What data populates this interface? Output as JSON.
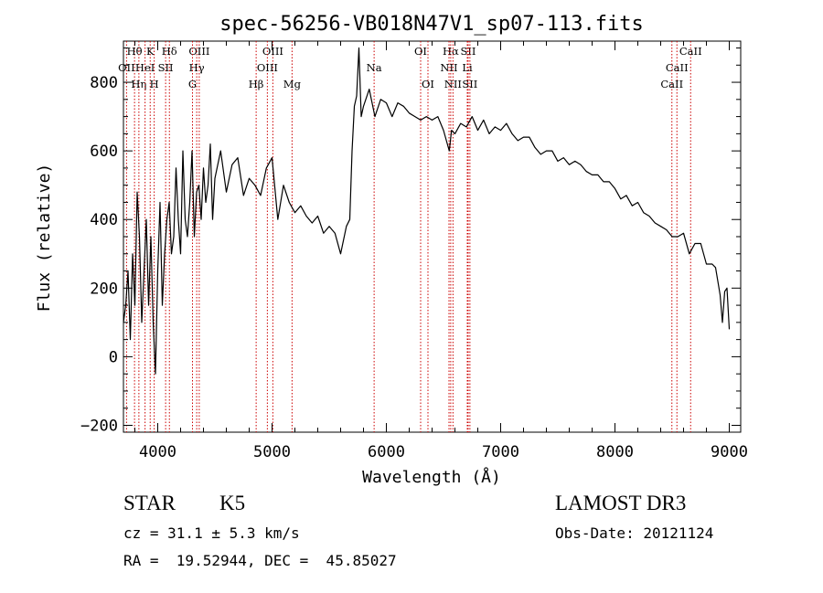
{
  "chart_data": {
    "type": "line",
    "title": "spec-56256-VB018N47V1_sp07-113.fits",
    "xlabel": "Wavelength (Å)",
    "ylabel": "Flux (relative)",
    "xlim": [
      3700,
      9100
    ],
    "ylim": [
      -220,
      920
    ],
    "x_ticks": [
      4000,
      5000,
      6000,
      7000,
      8000,
      9000
    ],
    "y_ticks": [
      -200,
      0,
      200,
      400,
      600,
      800
    ],
    "y_ticks_labels": [
      "−200",
      "0",
      "200",
      "400",
      "600",
      "800"
    ],
    "grid": false,
    "series_color": "#000000",
    "line_color": "#cc0000",
    "spectrum": {
      "x": [
        3700,
        3720,
        3740,
        3760,
        3780,
        3800,
        3820,
        3840,
        3860,
        3880,
        3900,
        3920,
        3940,
        3960,
        3980,
        4000,
        4020,
        4040,
        4060,
        4080,
        4100,
        4120,
        4140,
        4160,
        4180,
        4200,
        4220,
        4240,
        4260,
        4280,
        4300,
        4320,
        4340,
        4360,
        4380,
        4400,
        4420,
        4440,
        4460,
        4480,
        4500,
        4550,
        4600,
        4650,
        4700,
        4750,
        4800,
        4850,
        4900,
        4950,
        5000,
        5050,
        5100,
        5150,
        5200,
        5250,
        5300,
        5350,
        5400,
        5450,
        5500,
        5550,
        5600,
        5650,
        5680,
        5700,
        5720,
        5740,
        5760,
        5780,
        5800,
        5850,
        5900,
        5950,
        6000,
        6050,
        6100,
        6150,
        6200,
        6250,
        6300,
        6350,
        6400,
        6450,
        6500,
        6550,
        6570,
        6600,
        6650,
        6700,
        6750,
        6800,
        6850,
        6900,
        6950,
        7000,
        7050,
        7100,
        7150,
        7200,
        7250,
        7300,
        7350,
        7400,
        7450,
        7500,
        7550,
        7600,
        7650,
        7700,
        7750,
        7800,
        7850,
        7900,
        7950,
        8000,
        8050,
        8100,
        8150,
        8200,
        8250,
        8300,
        8350,
        8400,
        8450,
        8500,
        8550,
        8600,
        8650,
        8700,
        8750,
        8800,
        8850,
        8880,
        8900,
        8920,
        8940,
        8960,
        8980,
        9000
      ],
      "y": [
        100,
        150,
        250,
        50,
        300,
        150,
        480,
        350,
        100,
        250,
        400,
        150,
        350,
        100,
        -50,
        250,
        450,
        150,
        300,
        400,
        450,
        300,
        350,
        550,
        400,
        300,
        600,
        400,
        350,
        450,
        600,
        350,
        480,
        500,
        400,
        550,
        450,
        500,
        620,
        400,
        520,
        600,
        480,
        560,
        580,
        470,
        520,
        500,
        470,
        550,
        580,
        400,
        500,
        450,
        420,
        440,
        410,
        390,
        410,
        360,
        380,
        360,
        300,
        380,
        400,
        600,
        730,
        760,
        900,
        700,
        730,
        780,
        700,
        750,
        740,
        700,
        740,
        730,
        710,
        700,
        690,
        700,
        690,
        700,
        660,
        600,
        660,
        650,
        680,
        670,
        700,
        660,
        690,
        650,
        670,
        660,
        680,
        650,
        630,
        640,
        640,
        610,
        590,
        600,
        600,
        570,
        580,
        560,
        570,
        560,
        540,
        530,
        530,
        510,
        510,
        490,
        460,
        470,
        440,
        450,
        420,
        410,
        390,
        380,
        370,
        350,
        350,
        360,
        300,
        330,
        330,
        270,
        270,
        260,
        220,
        180,
        100,
        190,
        200,
        80
      ]
    },
    "lines": [
      {
        "label": "Hθ",
        "x": 3797,
        "row": 0
      },
      {
        "label": "OII",
        "x": 3727,
        "row": 1
      },
      {
        "label": "Hη",
        "x": 3835,
        "row": 2
      },
      {
        "label": "K",
        "x": 3934,
        "row": 0
      },
      {
        "label": "HeI",
        "x": 3889,
        "row": 1
      },
      {
        "label": "SII",
        "x": 4069,
        "row": 1
      },
      {
        "label": "H",
        "x": 3969,
        "row": 2
      },
      {
        "label": "Hδ",
        "x": 4102,
        "row": 0
      },
      {
        "label": "OIII",
        "x": 4363,
        "row": 0
      },
      {
        "label": "Hγ",
        "x": 4341,
        "row": 1
      },
      {
        "label": "G",
        "x": 4304,
        "row": 2
      },
      {
        "label": "Hβ",
        "x": 4861,
        "row": 2
      },
      {
        "label": "OIII",
        "x": 5007,
        "row": 0
      },
      {
        "label": "OIII",
        "x": 4959,
        "row": 1
      },
      {
        "label": "Mg",
        "x": 5175,
        "row": 2
      },
      {
        "label": "Na",
        "x": 5893,
        "row": 1
      },
      {
        "label": "OI",
        "x": 6300,
        "row": 0
      },
      {
        "label": "OI",
        "x": 6364,
        "row": 2
      },
      {
        "label": "Hα",
        "x": 6563,
        "row": 0
      },
      {
        "label": "SII",
        "x": 6716,
        "row": 0
      },
      {
        "label": "NII",
        "x": 6548,
        "row": 1
      },
      {
        "label": "Li",
        "x": 6708,
        "row": 1
      },
      {
        "label": "NII",
        "x": 6583,
        "row": 2
      },
      {
        "label": "SII",
        "x": 6731,
        "row": 2
      },
      {
        "label": "CaII",
        "x": 8662,
        "row": 0
      },
      {
        "label": "CaII",
        "x": 8542,
        "row": 1
      },
      {
        "label": "CaII",
        "x": 8498,
        "row": 2
      }
    ]
  },
  "footer": {
    "object_class": "STAR",
    "subclass": "K5",
    "survey": "LAMOST DR3",
    "redshift": "cz = 31.1 ± 5.3 km/s",
    "obs_date": "Obs-Date: 20121124",
    "coords": "RA =  19.52944, DEC =  45.85027"
  }
}
